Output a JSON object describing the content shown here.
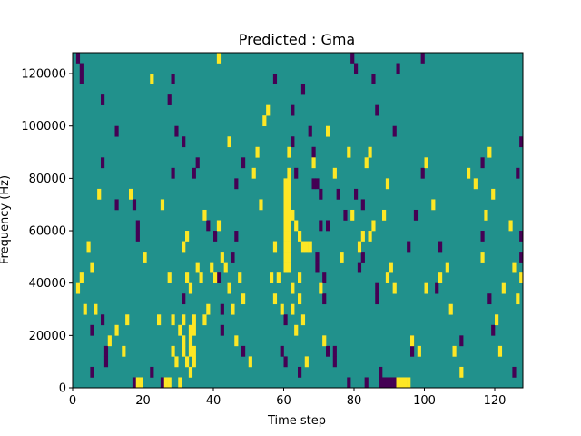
{
  "chart_data": {
    "type": "heatmap",
    "title": "Predicted : Gma",
    "xlabel": "Time step",
    "ylabel": "Frequency (Hz)",
    "xlim": [
      0,
      128
    ],
    "ylim": [
      0,
      128000
    ],
    "xticks": [
      0,
      20,
      40,
      60,
      80,
      100,
      120
    ],
    "yticks": [
      0,
      20000,
      40000,
      60000,
      80000,
      100000,
      120000
    ],
    "grid": false,
    "legend": "none",
    "colors": {
      "background": "#21918c",
      "low": "#440154",
      "high": "#fde725"
    },
    "n_time_steps": 128,
    "n_freq_bins": 32,
    "freq_bin_hz": 4000,
    "low_cells": [
      [
        1,
        31
      ],
      [
        2,
        30
      ],
      [
        2,
        29
      ],
      [
        8,
        27
      ],
      [
        8,
        21
      ],
      [
        8,
        6
      ],
      [
        9,
        3
      ],
      [
        9,
        2
      ],
      [
        5,
        1
      ],
      [
        12,
        24
      ],
      [
        12,
        17
      ],
      [
        17,
        17
      ],
      [
        18,
        15
      ],
      [
        18,
        14
      ],
      [
        17,
        0
      ],
      [
        22,
        1
      ],
      [
        25,
        0
      ],
      [
        34,
        20
      ],
      [
        38,
        15
      ],
      [
        35,
        21
      ],
      [
        29,
        24
      ],
      [
        28,
        29
      ],
      [
        27,
        27
      ],
      [
        40,
        14
      ],
      [
        41,
        10
      ],
      [
        42,
        7
      ],
      [
        42,
        5
      ],
      [
        45,
        12
      ],
      [
        46,
        14
      ],
      [
        46,
        19
      ],
      [
        48,
        3
      ],
      [
        48,
        21
      ],
      [
        57,
        29
      ],
      [
        60,
        6
      ],
      [
        62,
        23
      ],
      [
        63,
        20
      ],
      [
        60,
        2
      ],
      [
        64,
        1
      ],
      [
        65,
        28
      ],
      [
        67,
        24
      ],
      [
        68,
        22
      ],
      [
        68,
        19
      ],
      [
        69,
        12
      ],
      [
        69,
        11
      ],
      [
        70,
        15
      ],
      [
        69,
        19
      ],
      [
        72,
        15
      ],
      [
        70,
        18
      ],
      [
        72,
        3
      ],
      [
        71,
        8
      ],
      [
        71,
        10
      ],
      [
        74,
        3
      ],
      [
        74,
        2
      ],
      [
        75,
        18
      ],
      [
        77,
        16
      ],
      [
        78,
        0
      ],
      [
        79,
        31
      ],
      [
        80,
        30
      ],
      [
        80,
        18
      ],
      [
        81,
        13
      ],
      [
        81,
        11
      ],
      [
        82,
        17
      ],
      [
        82,
        12
      ],
      [
        83,
        0
      ],
      [
        85,
        29
      ],
      [
        86,
        26
      ],
      [
        86,
        9
      ],
      [
        86,
        8
      ],
      [
        87,
        1
      ],
      [
        87,
        0
      ],
      [
        88,
        0
      ],
      [
        89,
        0
      ],
      [
        90,
        0
      ],
      [
        91,
        0
      ],
      [
        91,
        24
      ],
      [
        92,
        30
      ],
      [
        95,
        13
      ],
      [
        96,
        4
      ],
      [
        96,
        3
      ],
      [
        97,
        16
      ],
      [
        99,
        20
      ],
      [
        99,
        31
      ],
      [
        103,
        9
      ],
      [
        104,
        13
      ],
      [
        110,
        4
      ],
      [
        116,
        14
      ],
      [
        116,
        21
      ],
      [
        118,
        8
      ],
      [
        119,
        5
      ],
      [
        125,
        1
      ],
      [
        126,
        20
      ],
      [
        127,
        14
      ],
      [
        127,
        12
      ],
      [
        127,
        23
      ],
      [
        5,
        5
      ],
      [
        28,
        20
      ],
      [
        31,
        23
      ],
      [
        31,
        8
      ],
      [
        59,
        3
      ],
      [
        62,
        26
      ]
    ],
    "high_cells": [
      [
        1,
        9
      ],
      [
        2,
        10
      ],
      [
        3,
        7
      ],
      [
        4,
        13
      ],
      [
        5,
        11
      ],
      [
        6,
        7
      ],
      [
        7,
        18
      ],
      [
        10,
        4
      ],
      [
        12,
        5
      ],
      [
        14,
        3
      ],
      [
        15,
        6
      ],
      [
        16,
        18
      ],
      [
        18,
        0
      ],
      [
        19,
        0
      ],
      [
        20,
        12
      ],
      [
        22,
        29
      ],
      [
        24,
        6
      ],
      [
        25,
        17
      ],
      [
        26,
        0
      ],
      [
        27,
        0
      ],
      [
        27,
        10
      ],
      [
        28,
        6
      ],
      [
        28,
        3
      ],
      [
        29,
        2
      ],
      [
        30,
        0
      ],
      [
        30,
        5
      ],
      [
        31,
        13
      ],
      [
        31,
        6
      ],
      [
        31,
        4
      ],
      [
        31,
        3
      ],
      [
        32,
        2
      ],
      [
        32,
        14
      ],
      [
        32,
        10
      ],
      [
        33,
        9
      ],
      [
        33,
        5
      ],
      [
        33,
        4
      ],
      [
        33,
        1
      ],
      [
        33,
        3
      ],
      [
        34,
        6
      ],
      [
        34,
        5
      ],
      [
        34,
        3
      ],
      [
        34,
        2
      ],
      [
        35,
        11
      ],
      [
        36,
        10
      ],
      [
        37,
        6
      ],
      [
        37,
        16
      ],
      [
        38,
        7
      ],
      [
        39,
        11
      ],
      [
        40,
        10
      ],
      [
        41,
        15
      ],
      [
        42,
        12
      ],
      [
        43,
        11
      ],
      [
        44,
        9
      ],
      [
        45,
        7
      ],
      [
        46,
        4
      ],
      [
        47,
        10
      ],
      [
        48,
        8
      ],
      [
        50,
        2
      ],
      [
        51,
        20
      ],
      [
        52,
        22
      ],
      [
        53,
        17
      ],
      [
        55,
        26
      ],
      [
        56,
        10
      ],
      [
        57,
        8
      ],
      [
        58,
        10
      ],
      [
        59,
        7
      ],
      [
        60,
        11
      ],
      [
        60,
        12
      ],
      [
        60,
        13
      ],
      [
        60,
        14
      ],
      [
        60,
        15
      ],
      [
        60,
        16
      ],
      [
        60,
        17
      ],
      [
        60,
        18
      ],
      [
        60,
        19
      ],
      [
        61,
        11
      ],
      [
        61,
        12
      ],
      [
        61,
        13
      ],
      [
        61,
        14
      ],
      [
        61,
        15
      ],
      [
        61,
        16
      ],
      [
        61,
        17
      ],
      [
        61,
        18
      ],
      [
        61,
        19
      ],
      [
        61,
        20
      ],
      [
        61,
        22
      ],
      [
        62,
        7
      ],
      [
        62,
        9
      ],
      [
        63,
        5
      ],
      [
        64,
        8
      ],
      [
        64,
        10
      ],
      [
        65,
        6
      ],
      [
        66,
        2
      ],
      [
        66,
        13
      ],
      [
        67,
        13
      ],
      [
        68,
        21
      ],
      [
        70,
        9
      ],
      [
        71,
        4
      ],
      [
        72,
        24
      ],
      [
        74,
        20
      ],
      [
        76,
        12
      ],
      [
        78,
        22
      ],
      [
        79,
        16
      ],
      [
        81,
        13
      ],
      [
        82,
        14
      ],
      [
        84,
        14
      ],
      [
        85,
        15
      ],
      [
        88,
        16
      ],
      [
        89,
        10
      ],
      [
        91,
        9
      ],
      [
        92,
        0
      ],
      [
        93,
        0
      ],
      [
        94,
        0
      ],
      [
        95,
        0
      ],
      [
        96,
        4
      ],
      [
        98,
        3
      ],
      [
        100,
        9
      ],
      [
        102,
        17
      ],
      [
        104,
        10
      ],
      [
        106,
        11
      ],
      [
        107,
        7
      ],
      [
        108,
        3
      ],
      [
        110,
        1
      ],
      [
        112,
        20
      ],
      [
        114,
        19
      ],
      [
        116,
        12
      ],
      [
        117,
        16
      ],
      [
        118,
        22
      ],
      [
        119,
        18
      ],
      [
        120,
        6
      ],
      [
        121,
        3
      ],
      [
        122,
        9
      ],
      [
        124,
        15
      ],
      [
        125,
        11
      ],
      [
        126,
        8
      ],
      [
        127,
        10
      ],
      [
        83,
        21
      ],
      [
        84,
        22
      ],
      [
        89,
        19
      ],
      [
        90,
        11
      ],
      [
        100,
        21
      ],
      [
        44,
        23
      ],
      [
        54,
        25
      ],
      [
        41,
        31
      ],
      [
        57,
        13
      ],
      [
        62,
        16
      ],
      [
        63,
        15
      ],
      [
        64,
        14
      ],
      [
        65,
        13
      ]
    ]
  }
}
